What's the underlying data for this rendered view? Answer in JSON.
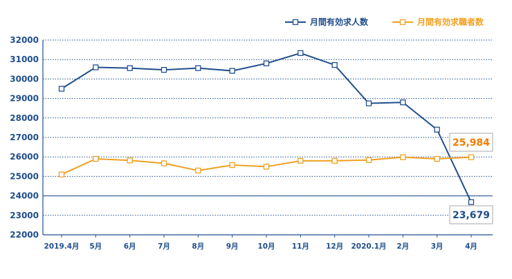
{
  "chart_data": {
    "type": "line",
    "categories": [
      "2019.4月",
      "5月",
      "6月",
      "7月",
      "8月",
      "9月",
      "10月",
      "11月",
      "12月",
      "2020.1月",
      "2月",
      "3月",
      "4月"
    ],
    "series": [
      {
        "name": "月間有効求人数",
        "color": "#1f4e8c",
        "values": [
          29500,
          30600,
          30560,
          30470,
          30560,
          30420,
          30800,
          31330,
          30720,
          28750,
          28800,
          27400,
          23679
        ]
      },
      {
        "name": "月間有効求職者数",
        "color": "#f0a020",
        "values": [
          25100,
          25900,
          25820,
          25670,
          25300,
          25580,
          25500,
          25800,
          25800,
          25840,
          25984,
          25900,
          25984
        ]
      }
    ],
    "ylim": [
      22000,
      32000
    ],
    "yticks": [
      22000,
      23000,
      24000,
      25000,
      26000,
      27000,
      28000,
      29000,
      30000,
      31000,
      32000
    ],
    "grid": true,
    "legend": "top-right",
    "annotations": [
      {
        "series": "月間有効求職者数",
        "label": "25,984",
        "color": "#f07c00"
      },
      {
        "series": "月間有効求人数",
        "label": "23,679",
        "color": "#1f4e8c"
      }
    ]
  }
}
